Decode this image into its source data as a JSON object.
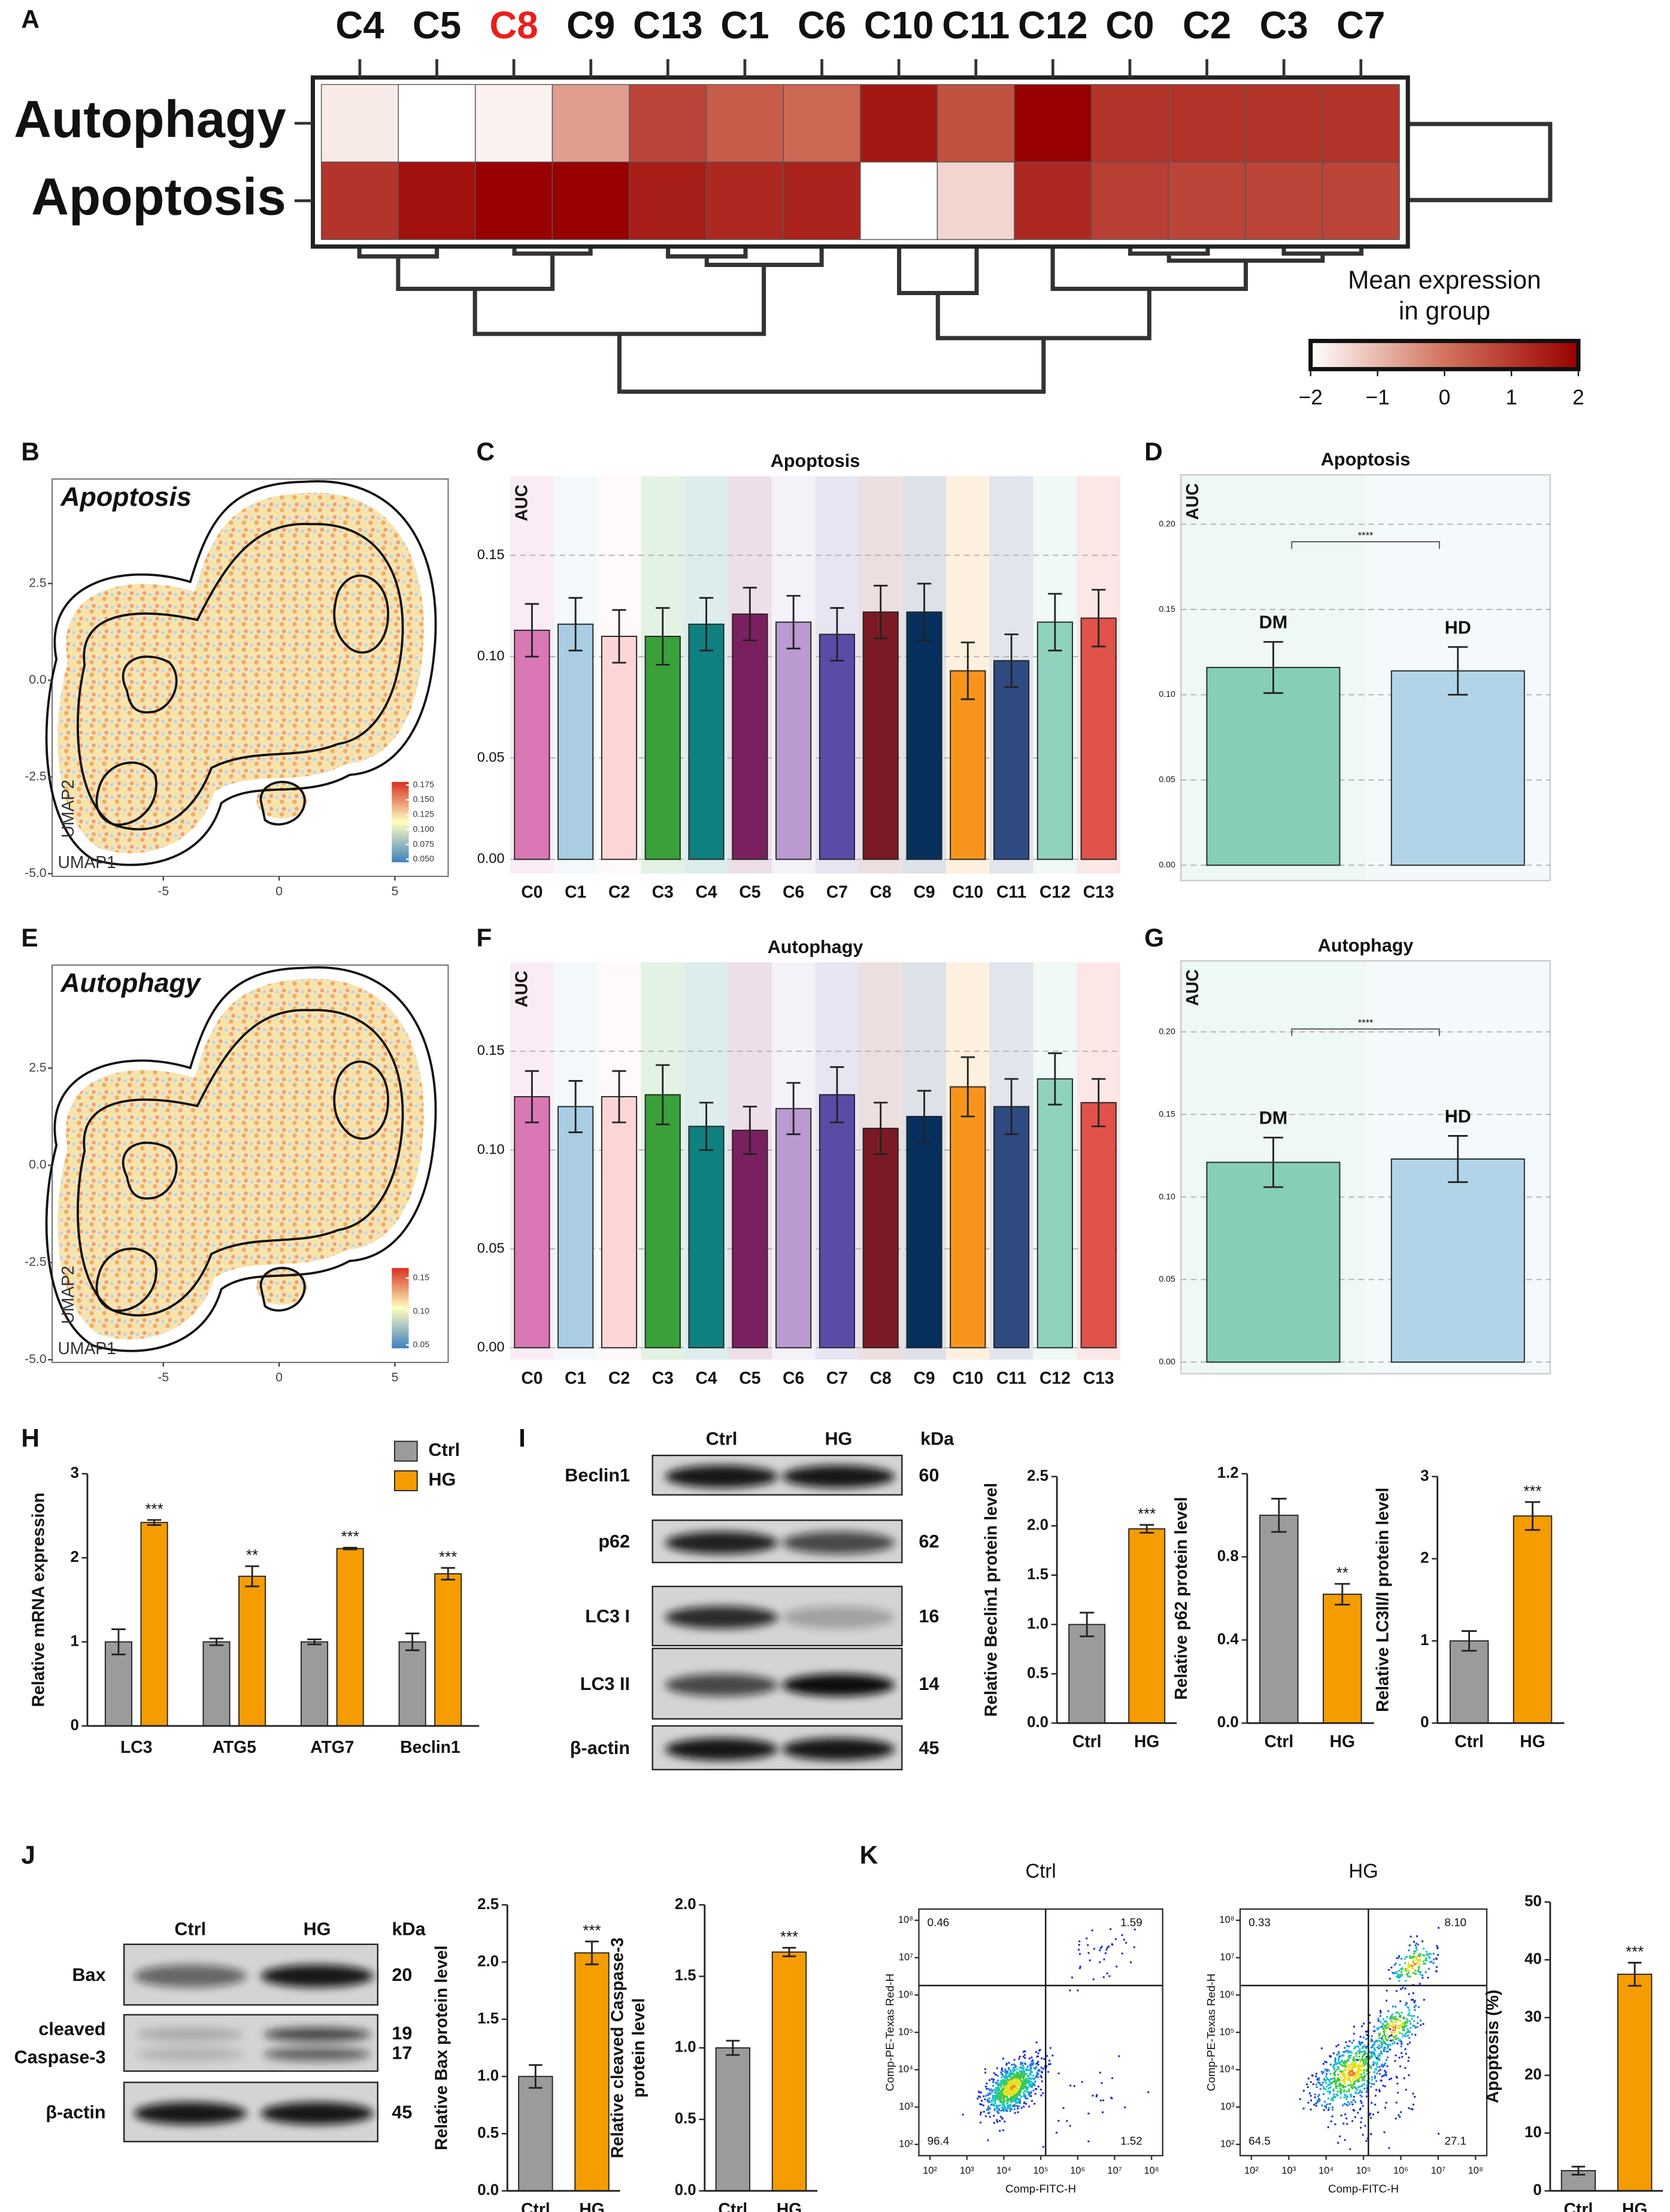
{
  "panel_labels": [
    "A",
    "B",
    "C",
    "D",
    "E",
    "F",
    "G",
    "H",
    "I",
    "J",
    "K"
  ],
  "chart_data": [
    {
      "type": "heatmap",
      "columns": [
        "C4",
        "C5",
        "C8",
        "C9",
        "C13",
        "C1",
        "C6",
        "C10",
        "C11",
        "C12",
        "C0",
        "C2",
        "C3",
        "C7"
      ],
      "rows": [
        "Autophagy",
        "Apoptosis"
      ],
      "values": [
        [
          -1.7,
          -2,
          -1.8,
          -0.6,
          0.8,
          0.4,
          0.2,
          1.6,
          0.6,
          2,
          1.1,
          1.1,
          1.1,
          1.1
        ],
        [
          1.1,
          1.7,
          2,
          2,
          1.5,
          1.3,
          1.4,
          -2,
          -1.4,
          1.3,
          0.9,
          0.8,
          0.8,
          0.8
        ]
      ],
      "highlight": "C8",
      "highlight_color": "#e8201c",
      "colorscale": [
        "#ffffff",
        "#d2735d",
        "#990000"
      ],
      "zlim": [
        -2,
        2
      ],
      "colorbar_title": [
        "Mean expression",
        "in group"
      ],
      "colorbar_ticks": [
        {
          "value": -2,
          "label": "−2"
        },
        {
          "value": -1,
          "label": "−1"
        },
        0,
        1,
        2
      ]
    },
    {
      "type": "umap",
      "title": "Apoptosis",
      "xlabel": "UMAP1",
      "ylabel": "UMAP2",
      "xlim": [
        -9.8,
        7.3
      ],
      "ylim": [
        -5.07,
        5.2
      ],
      "xticks": [
        -5,
        0,
        5
      ],
      "yticks": [
        {
          "value": -5,
          "label": "-5.0"
        },
        -2.5,
        {
          "value": 0,
          "label": "0.0"
        },
        2.5
      ],
      "colorbar_lim": [
        0.045,
        0.18
      ],
      "colorbar_ticks": [
        {
          "value": 0.05,
          "label": "0.050"
        },
        0.075,
        {
          "value": 0.1,
          "label": "0.100"
        },
        0.125,
        {
          "value": 0.15,
          "label": "0.150"
        },
        0.175
      ],
      "colorscale": [
        "#3f7fbf",
        "#ffffbf",
        "#d7301f"
      ]
    },
    {
      "type": "bar",
      "title": "Apoptosis",
      "ylabel": "AUC",
      "categories": [
        "C0",
        "C1",
        "C2",
        "C3",
        "C4",
        "C5",
        "C6",
        "C7",
        "C8",
        "C9",
        "C10",
        "C11",
        "C12",
        "C13"
      ],
      "values": [
        0.113,
        0.116,
        0.11,
        0.11,
        0.116,
        0.121,
        0.117,
        0.111,
        0.122,
        0.122,
        0.093,
        0.098,
        0.117,
        0.119
      ],
      "errors": [
        0.013,
        0.013,
        0.013,
        0.014,
        0.013,
        0.013,
        0.013,
        0.013,
        0.013,
        0.014,
        0.014,
        0.013,
        0.014,
        0.014
      ],
      "colors": [
        "#d978b4",
        "#a9cde3",
        "#fcd6d6",
        "#3aa03a",
        "#0f8080",
        "#7a1f5f",
        "#b99ad1",
        "#5b4aa6",
        "#7a1a24",
        "#07305e",
        "#f7941d",
        "#2f4a80",
        "#8fd3bf",
        "#e0524a"
      ],
      "ylim": [
        -0.007,
        0.189
      ],
      "yticks": [
        {
          "value": 0,
          "label": "0.00"
        },
        0.05,
        {
          "value": 0.1,
          "label": "0.10"
        },
        0.15
      ],
      "grid": true,
      "background_bands": true
    },
    {
      "type": "bar",
      "title": "Apoptosis",
      "ylabel": "AUC",
      "categories": [
        "DM",
        "HD"
      ],
      "values": [
        0.116,
        0.114
      ],
      "errors": [
        0.015,
        0.014
      ],
      "colors": [
        "#86cfb6",
        "#b2d4e8"
      ],
      "ylim": [
        -0.009,
        0.229
      ],
      "yticks": [
        {
          "value": 0,
          "label": "0.00"
        },
        0.05,
        {
          "value": 0.1,
          "label": "0.10"
        },
        0.15,
        {
          "value": 0.2,
          "label": "0.20"
        }
      ],
      "grid": true,
      "background_bands": true,
      "significance": "****",
      "bracket": true
    },
    {
      "type": "umap",
      "title": "Autophagy",
      "xlabel": "UMAP1",
      "ylabel": "UMAP2",
      "xlim": [
        -9.8,
        7.3
      ],
      "ylim": [
        -5.07,
        5.15
      ],
      "xticks": [
        -5,
        0,
        5
      ],
      "yticks": [
        {
          "value": -5,
          "label": "-5.0"
        },
        -2.5,
        {
          "value": 0,
          "label": "0.0"
        },
        2.5
      ],
      "colorbar_lim": [
        0.045,
        0.165
      ],
      "colorbar_ticks": [
        0.05,
        {
          "value": 0.1,
          "label": "0.10"
        },
        0.15
      ],
      "colorscale": [
        "#3f7fbf",
        "#ffffbf",
        "#d7301f"
      ]
    },
    {
      "type": "bar",
      "title": "Autophagy",
      "ylabel": "AUC",
      "categories": [
        "C0",
        "C1",
        "C2",
        "C3",
        "C4",
        "C5",
        "C6",
        "C7",
        "C8",
        "C9",
        "C10",
        "C11",
        "C12",
        "C13"
      ],
      "values": [
        0.127,
        0.122,
        0.127,
        0.128,
        0.112,
        0.11,
        0.121,
        0.128,
        0.111,
        0.117,
        0.132,
        0.122,
        0.136,
        0.124
      ],
      "errors": [
        0.013,
        0.013,
        0.013,
        0.015,
        0.012,
        0.012,
        0.013,
        0.014,
        0.013,
        0.013,
        0.015,
        0.014,
        0.013,
        0.012
      ],
      "colors": [
        "#d978b4",
        "#a9cde3",
        "#fcd6d6",
        "#3aa03a",
        "#0f8080",
        "#7a1f5f",
        "#b99ad1",
        "#5b4aa6",
        "#7a1a24",
        "#07305e",
        "#f7941d",
        "#2f4a80",
        "#8fd3bf",
        "#e0524a"
      ],
      "ylim": [
        -0.006,
        0.195
      ],
      "yticks": [
        {
          "value": 0,
          "label": "0.00"
        },
        0.05,
        {
          "value": 0.1,
          "label": "0.10"
        },
        0.15
      ],
      "grid": true,
      "background_bands": true
    },
    {
      "type": "bar",
      "title": "Autophagy",
      "ylabel": "AUC",
      "categories": [
        "DM",
        "HD"
      ],
      "values": [
        0.121,
        0.123
      ],
      "errors": [
        0.015,
        0.014
      ],
      "colors": [
        "#86cfb6",
        "#b2d4e8"
      ],
      "ylim": [
        -0.007,
        0.243
      ],
      "yticks": [
        {
          "value": 0,
          "label": "0.00"
        },
        0.05,
        {
          "value": 0.1,
          "label": "0.10"
        },
        0.15,
        {
          "value": 0.2,
          "label": "0.20"
        }
      ],
      "grid": true,
      "background_bands": true,
      "significance": "****",
      "bracket": true
    },
    {
      "type": "grouped_bar",
      "ylabel": "Relative mRNA expression",
      "categories": [
        "LC3",
        "ATG5",
        "ATG7",
        "Beclin1"
      ],
      "series": [
        {
          "name": "Ctrl",
          "color": "#9b9b9b",
          "values": [
            1,
            1,
            1,
            1
          ],
          "errors": [
            0.15,
            0.04,
            0.03,
            0.1
          ]
        },
        {
          "name": "HG",
          "color": "#f59c00",
          "values": [
            2.42,
            1.78,
            2.11,
            1.81
          ],
          "errors": [
            0.03,
            0.12,
            0.01,
            0.07
          ]
        }
      ],
      "significance": [
        "***",
        "**",
        "***",
        "***"
      ],
      "ylim": [
        0,
        3
      ],
      "yticks": [
        0,
        1,
        2,
        3
      ],
      "legend": "top-right"
    },
    {
      "type": "bar",
      "ylabel": "Relative Beclin1 protein level",
      "categories": [
        "Ctrl",
        "HG"
      ],
      "values": [
        1.0,
        1.97
      ],
      "errors": [
        0.12,
        0.04
      ],
      "colors": [
        "#9b9b9b",
        "#f59c00"
      ],
      "ylim": [
        0,
        2.5
      ],
      "yticks": [
        {
          "value": 0,
          "label": "0.0"
        },
        0.5,
        {
          "value": 1,
          "label": "1.0"
        },
        1.5,
        {
          "value": 2,
          "label": "2.0"
        },
        2.5
      ],
      "significance": "***"
    },
    {
      "type": "bar",
      "ylabel": "Relative p62 protein level",
      "categories": [
        "Ctrl",
        "HG"
      ],
      "values": [
        1.0,
        0.62
      ],
      "errors": [
        0.08,
        0.05
      ],
      "colors": [
        "#9b9b9b",
        "#f59c00"
      ],
      "ylim": [
        0,
        1.2
      ],
      "yticks": [
        {
          "value": 0,
          "label": "0.0"
        },
        0.4,
        0.8,
        1.2
      ],
      "significance": "**"
    },
    {
      "type": "bar",
      "ylabel": "Relative LC3II/I protein level",
      "categories": [
        "Ctrl",
        "HG"
      ],
      "values": [
        1.0,
        2.52
      ],
      "errors": [
        0.12,
        0.17
      ],
      "colors": [
        "#9b9b9b",
        "#f59c00"
      ],
      "ylim": [
        0,
        3
      ],
      "yticks": [
        0,
        1,
        2,
        3
      ],
      "significance": "***"
    },
    {
      "type": "bar",
      "ylabel": "Relative Bax protein level",
      "categories": [
        "Ctrl",
        "HG"
      ],
      "values": [
        1.0,
        2.08
      ],
      "errors": [
        0.1,
        0.1
      ],
      "colors": [
        "#9b9b9b",
        "#f59c00"
      ],
      "ylim": [
        0,
        2.5
      ],
      "yticks": [
        {
          "value": 0,
          "label": "0.0"
        },
        0.5,
        {
          "value": 1,
          "label": "1.0"
        },
        1.5,
        {
          "value": 2,
          "label": "2.0"
        },
        2.5
      ],
      "significance": "***"
    },
    {
      "type": "bar",
      "ylabel": [
        "Relative cleaved Caspase-3",
        "protein level"
      ],
      "categories": [
        "Ctrl",
        "HG"
      ],
      "values": [
        1.0,
        1.67
      ],
      "errors": [
        0.05,
        0.03
      ],
      "colors": [
        "#9b9b9b",
        "#f59c00"
      ],
      "ylim": [
        0,
        2
      ],
      "yticks": [
        {
          "value": 0,
          "label": "0.0"
        },
        0.5,
        {
          "value": 1,
          "label": "1.0"
        },
        1.5,
        {
          "value": 2,
          "label": "2.0"
        }
      ],
      "significance": "***"
    },
    {
      "type": "flow",
      "title": "Ctrl",
      "xlabel": "Comp-FITC-H",
      "ylabel": "Comp-PE-Texas Red-H",
      "log": true,
      "xlim": [
        50,
        200000000
      ],
      "ylim": [
        50,
        200000000
      ],
      "xticks": [
        {
          "value": 100,
          "label": "10²"
        },
        {
          "value": 1000,
          "label": "10³"
        },
        {
          "value": 10000,
          "label": "10⁴"
        },
        {
          "value": 100000,
          "label": "10⁵"
        },
        {
          "value": 1000000,
          "label": "10⁶"
        },
        {
          "value": 10000000,
          "label": "10⁷"
        },
        {
          "value": 100000000,
          "label": "10⁸"
        }
      ],
      "yticks": [
        {
          "value": 100,
          "label": "10²"
        },
        {
          "value": 1000,
          "label": "10³"
        },
        {
          "value": 10000,
          "label": "10⁴"
        },
        {
          "value": 100000,
          "label": "10⁵"
        },
        {
          "value": 1000000,
          "label": "10⁶"
        },
        {
          "value": 10000000,
          "label": "10⁷"
        },
        {
          "value": 100000000,
          "label": "10⁸"
        }
      ],
      "quadrants": [
        0.46,
        1.59,
        96.4,
        1.52
      ]
    },
    {
      "type": "flow",
      "title": "HG",
      "xlabel": "Comp-FITC-H",
      "ylabel": "Comp-PE-Texas Red-H",
      "log": true,
      "xlim": [
        50,
        200000000
      ],
      "ylim": [
        50,
        200000000
      ],
      "xticks": [
        {
          "value": 100,
          "label": "10²"
        },
        {
          "value": 1000,
          "label": "10³"
        },
        {
          "value": 10000,
          "label": "10⁴"
        },
        {
          "value": 100000,
          "label": "10⁵"
        },
        {
          "value": 1000000,
          "label": "10⁶"
        },
        {
          "value": 10000000,
          "label": "10⁷"
        },
        {
          "value": 100000000,
          "label": "10⁸"
        }
      ],
      "yticks": [
        {
          "value": 100,
          "label": "10²"
        },
        {
          "value": 1000,
          "label": "10³"
        },
        {
          "value": 10000,
          "label": "10⁴"
        },
        {
          "value": 100000,
          "label": "10⁵"
        },
        {
          "value": 1000000,
          "label": "10⁶"
        },
        {
          "value": 10000000,
          "label": "10⁷"
        },
        {
          "value": 100000000,
          "label": "10⁸"
        }
      ],
      "quadrants": [
        0.33,
        {
          "value": 8.1,
          "label": "8.10"
        },
        64.5,
        27.1
      ]
    },
    {
      "type": "bar",
      "ylabel": "Apoptosis (%)",
      "categories": [
        "Ctrl",
        "HG"
      ],
      "values": [
        3.5,
        37.5
      ],
      "errors": [
        0.7,
        2.0
      ],
      "colors": [
        "#9b9b9b",
        "#f59c00"
      ],
      "ylim": [
        0,
        50
      ],
      "yticks": [
        0,
        10,
        20,
        30,
        40,
        50
      ],
      "significance": "***"
    }
  ],
  "blots": [
    {
      "lanes": [
        "Ctrl",
        "HG"
      ],
      "unit": "kDa",
      "rows": [
        {
          "label": "Beclin1",
          "kda": [
            60
          ]
        },
        {
          "label": "p62",
          "kda": [
            62
          ]
        },
        {
          "label": "LC3 I",
          "kda": [
            16
          ]
        },
        {
          "label": "LC3 II",
          "kda": [
            14
          ]
        },
        {
          "label": "β-actin",
          "kda": [
            45
          ]
        }
      ]
    },
    {
      "lanes": [
        "Ctrl",
        "HG"
      ],
      "unit": "kDa",
      "rows": [
        {
          "label": "Bax",
          "kda": [
            20
          ]
        },
        {
          "label": [
            "cleaved",
            "Caspase-3"
          ],
          "kda": [
            19,
            17
          ]
        },
        {
          "label": "β-actin",
          "kda": [
            45
          ]
        }
      ]
    }
  ]
}
